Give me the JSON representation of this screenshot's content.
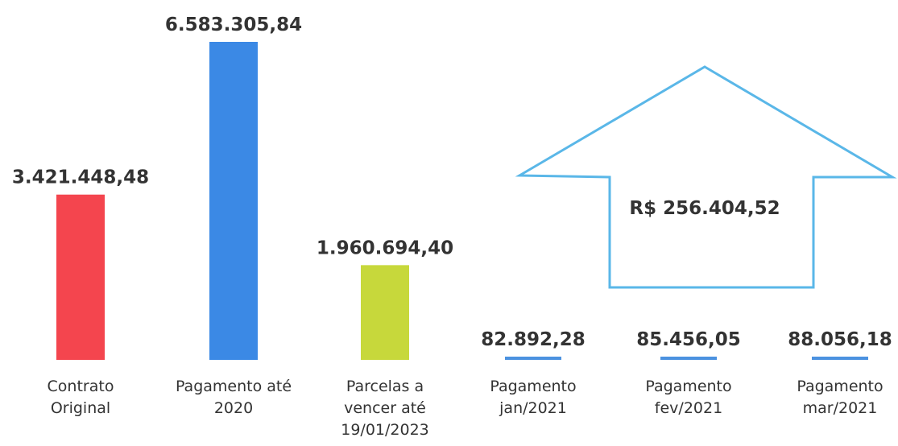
{
  "chart_data": {
    "type": "bar",
    "categories": [
      "Contrato Original",
      "Pagamento até 2020",
      "Parcelas a vencer até 19/01/2023",
      "Pagamento jan/2021",
      "Pagamento fev/2021",
      "Pagamento mar/2021"
    ],
    "values": [
      3421448.48,
      6583305.84,
      1960694.4,
      82892.28,
      85456.05,
      88056.18
    ],
    "value_labels": [
      "3.421.448,48",
      "6.583.305,84",
      "1.960.694,40",
      "82.892,28",
      "85.456,05",
      "88.056,18"
    ],
    "colors": [
      "#f4454e",
      "#3b89e5",
      "#c7d83b",
      "#4b92e0",
      "#4b92e0",
      "#4b92e0"
    ],
    "ylim": [
      0,
      7000000
    ],
    "annotations": [
      "R$ 256.404,52"
    ]
  }
}
